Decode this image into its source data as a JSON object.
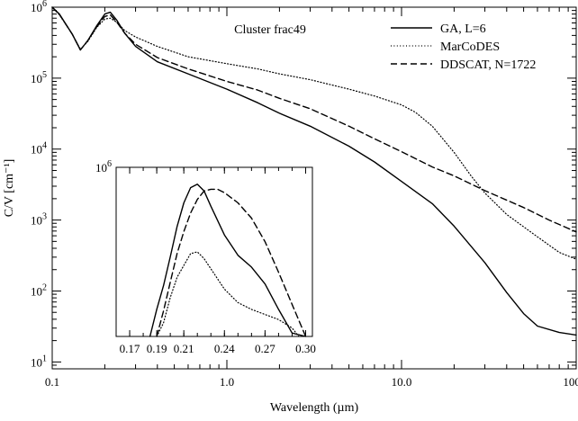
{
  "chart_data": [
    {
      "type": "line",
      "annotation": "Cluster frac49",
      "xlabel": "Wavelength (µm)",
      "ylabel": "C/V [cm⁻¹]",
      "xscale": "log",
      "yscale": "log",
      "xlim": [
        0.1,
        100.0
      ],
      "ylim": [
        8,
        1000000
      ],
      "x_tick_labels": [
        "0.1",
        "1.0",
        "10.0",
        "100.0"
      ],
      "x_tick_values": [
        0.1,
        1.0,
        10.0,
        100.0
      ],
      "y_tick_labels": [
        "10",
        "10",
        "10",
        "10",
        "10",
        "10"
      ],
      "y_tick_exponents": [
        "1",
        "2",
        "3",
        "4",
        "5",
        "6"
      ],
      "y_tick_values": [
        10,
        100,
        1000,
        10000,
        100000,
        1000000
      ],
      "legend_position": "top-right",
      "series": [
        {
          "name": "GA, L=6",
          "style": "solid",
          "x": [
            0.1,
            0.11,
            0.13,
            0.145,
            0.16,
            0.18,
            0.2,
            0.215,
            0.235,
            0.26,
            0.3,
            0.4,
            0.6,
            1.0,
            1.5,
            2.0,
            3.0,
            5.0,
            7.0,
            10.0,
            15.0,
            20.0,
            30.0,
            40.0,
            50.0,
            60.0,
            80.0,
            100.0
          ],
          "y": [
            1000000,
            800000,
            420000,
            250000,
            340000,
            550000,
            800000,
            850000,
            650000,
            430000,
            280000,
            170000,
            115000,
            70000,
            45000,
            32000,
            21000,
            11000,
            6600,
            3500,
            1700,
            820,
            250,
            95,
            48,
            32,
            26,
            24
          ]
        },
        {
          "name": "MarCoDES",
          "style": "dotted",
          "x": [
            0.1,
            0.11,
            0.13,
            0.145,
            0.16,
            0.18,
            0.2,
            0.215,
            0.235,
            0.26,
            0.3,
            0.4,
            0.6,
            1.0,
            1.5,
            2.0,
            3.0,
            5.0,
            7.0,
            10.0,
            12.0,
            15.0,
            20.0,
            25.0,
            30.0,
            40.0,
            60.0,
            80.0,
            100.0
          ],
          "y": [
            1000000,
            780000,
            420000,
            255000,
            330000,
            520000,
            680000,
            700000,
            610000,
            470000,
            380000,
            280000,
            200000,
            160000,
            135000,
            115000,
            95000,
            70000,
            56000,
            42000,
            33000,
            21000,
            9000,
            4200,
            2400,
            1200,
            580,
            350,
            280
          ]
        },
        {
          "name": "DDSCAT, N=1722",
          "style": "dashed",
          "x": [
            0.1,
            0.11,
            0.13,
            0.145,
            0.16,
            0.18,
            0.2,
            0.215,
            0.235,
            0.26,
            0.3,
            0.4,
            0.6,
            1.0,
            1.5,
            2.0,
            3.0,
            5.0,
            7.0,
            10.0,
            15.0,
            20.0,
            30.0,
            50.0,
            70.0,
            100.0
          ],
          "y": [
            1000000,
            790000,
            420000,
            250000,
            340000,
            530000,
            740000,
            780000,
            610000,
            430000,
            300000,
            195000,
            135000,
            90000,
            68000,
            52000,
            37000,
            21000,
            14000,
            9200,
            5600,
            4200,
            2600,
            1500,
            1000,
            680
          ]
        }
      ]
    },
    {
      "type": "line",
      "xscale": "linear",
      "yscale": "linear",
      "xlim": [
        0.16,
        0.305
      ],
      "ylim": [
        0,
        1000000
      ],
      "x_tick_labels": [
        "0.17",
        "0.19",
        "0.21",
        "0.24",
        "0.27",
        "0.30"
      ],
      "x_tick_values": [
        0.17,
        0.19,
        0.21,
        0.24,
        0.27,
        0.3
      ],
      "y_tick_labels": [
        "10"
      ],
      "y_tick_exponents": [
        "6"
      ],
      "y_tick_values": [
        1000000
      ],
      "series": [
        {
          "name": "GA, L=6",
          "style": "solid",
          "x": [
            0.185,
            0.19,
            0.195,
            0.2,
            0.205,
            0.21,
            0.215,
            0.22,
            0.225,
            0.23,
            0.24,
            0.25,
            0.26,
            0.27,
            0.28,
            0.29,
            0.3
          ],
          "y": [
            0,
            160000,
            300000,
            470000,
            650000,
            790000,
            880000,
            900000,
            860000,
            770000,
            600000,
            480000,
            410000,
            310000,
            160000,
            20000,
            0
          ]
        },
        {
          "name": "MarCoDES",
          "style": "dotted",
          "x": [
            0.19,
            0.195,
            0.2,
            0.205,
            0.21,
            0.215,
            0.22,
            0.225,
            0.23,
            0.24,
            0.25,
            0.26,
            0.27,
            0.28,
            0.29,
            0.295
          ],
          "y": [
            0,
            80000,
            230000,
            350000,
            420000,
            490000,
            500000,
            460000,
            400000,
            280000,
            200000,
            160000,
            130000,
            100000,
            50000,
            0
          ]
        },
        {
          "name": "DDSCAT, N=1722",
          "style": "dashed",
          "x": [
            0.19,
            0.195,
            0.2,
            0.205,
            0.21,
            0.215,
            0.22,
            0.225,
            0.23,
            0.235,
            0.24,
            0.25,
            0.26,
            0.27,
            0.28,
            0.29,
            0.3
          ],
          "y": [
            0,
            150000,
            320000,
            490000,
            620000,
            730000,
            810000,
            860000,
            870000,
            870000,
            850000,
            790000,
            700000,
            560000,
            380000,
            190000,
            0
          ]
        }
      ]
    }
  ]
}
